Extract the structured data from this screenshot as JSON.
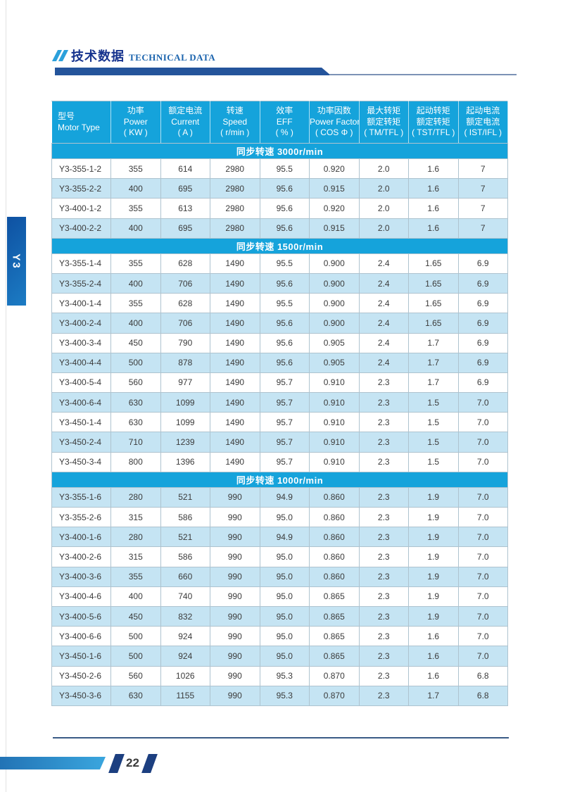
{
  "header": {
    "title_zh": "技术数据",
    "title_en": "TECHNICAL DATA"
  },
  "side_tab": {
    "label": "Y3"
  },
  "footer": {
    "page_number": "22"
  },
  "colors": {
    "table_blue": "#15a3db",
    "stripe_blue": "#c5e4f3",
    "title_navy": "#16338e",
    "bar_navy": "#24549b",
    "tab_blue": "#1464b0",
    "footer_slash_navy": "#1c3f80"
  },
  "table": {
    "columns": [
      {
        "lines": [
          "型号",
          "Motor Type"
        ]
      },
      {
        "lines": [
          "功率",
          "Power",
          "( KW )"
        ]
      },
      {
        "lines": [
          "额定电流",
          "Current",
          "( A )"
        ]
      },
      {
        "lines": [
          "转速",
          "Speed",
          "( r/min )"
        ]
      },
      {
        "lines": [
          "效率",
          "EFF",
          "( % )"
        ]
      },
      {
        "lines": [
          "功率因数",
          "Power Factor",
          "( COS Φ )"
        ]
      },
      {
        "lines": [
          "最大转矩",
          "额定转矩",
          "( TM/TFL )"
        ]
      },
      {
        "lines": [
          "起动转矩",
          "额定转矩",
          "( TST/TFL )"
        ]
      },
      {
        "lines": [
          "起动电流",
          "额定电流",
          "( IST/IFL )"
        ]
      }
    ],
    "sections": [
      {
        "title": "同步转速 3000r/min",
        "first_row_shaded": false,
        "rows": [
          [
            "Y3-355-1-2",
            "355",
            "614",
            "2980",
            "95.5",
            "0.920",
            "2.0",
            "1.6",
            "7"
          ],
          [
            "Y3-355-2-2",
            "400",
            "695",
            "2980",
            "95.6",
            "0.915",
            "2.0",
            "1.6",
            "7"
          ],
          [
            "Y3-400-1-2",
            "355",
            "613",
            "2980",
            "95.6",
            "0.920",
            "2.0",
            "1.6",
            "7"
          ],
          [
            "Y3-400-2-2",
            "400",
            "695",
            "2980",
            "95.6",
            "0.915",
            "2.0",
            "1.6",
            "7"
          ]
        ]
      },
      {
        "title": "同步转速 1500r/min",
        "first_row_shaded": false,
        "rows": [
          [
            "Y3-355-1-4",
            "355",
            "628",
            "1490",
            "95.5",
            "0.900",
            "2.4",
            "1.65",
            "6.9"
          ],
          [
            "Y3-355-2-4",
            "400",
            "706",
            "1490",
            "95.6",
            "0.900",
            "2.4",
            "1.65",
            "6.9"
          ],
          [
            "Y3-400-1-4",
            "355",
            "628",
            "1490",
            "95.5",
            "0.900",
            "2.4",
            "1.65",
            "6.9"
          ],
          [
            "Y3-400-2-4",
            "400",
            "706",
            "1490",
            "95.6",
            "0.900",
            "2.4",
            "1.65",
            "6.9"
          ],
          [
            "Y3-400-3-4",
            "450",
            "790",
            "1490",
            "95.6",
            "0.905",
            "2.4",
            "1.7",
            "6.9"
          ],
          [
            "Y3-400-4-4",
            "500",
            "878",
            "1490",
            "95.6",
            "0.905",
            "2.4",
            "1.7",
            "6.9"
          ],
          [
            "Y3-400-5-4",
            "560",
            "977",
            "1490",
            "95.7",
            "0.910",
            "2.3",
            "1.7",
            "6.9"
          ],
          [
            "Y3-400-6-4",
            "630",
            "1099",
            "1490",
            "95.7",
            "0.910",
            "2.3",
            "1.5",
            "7.0"
          ],
          [
            "Y3-450-1-4",
            "630",
            "1099",
            "1490",
            "95.7",
            "0.910",
            "2.3",
            "1.5",
            "7.0"
          ],
          [
            "Y3-450-2-4",
            "710",
            "1239",
            "1490",
            "95.7",
            "0.910",
            "2.3",
            "1.5",
            "7.0"
          ],
          [
            "Y3-450-3-4",
            "800",
            "1396",
            "1490",
            "95.7",
            "0.910",
            "2.3",
            "1.5",
            "7.0"
          ]
        ]
      },
      {
        "title": "同步转速 1000r/min",
        "first_row_shaded": true,
        "rows": [
          [
            "Y3-355-1-6",
            "280",
            "521",
            "990",
            "94.9",
            "0.860",
            "2.3",
            "1.9",
            "7.0"
          ],
          [
            "Y3-355-2-6",
            "315",
            "586",
            "990",
            "95.0",
            "0.860",
            "2.3",
            "1.9",
            "7.0"
          ],
          [
            "Y3-400-1-6",
            "280",
            "521",
            "990",
            "94.9",
            "0.860",
            "2.3",
            "1.9",
            "7.0"
          ],
          [
            "Y3-400-2-6",
            "315",
            "586",
            "990",
            "95.0",
            "0.860",
            "2.3",
            "1.9",
            "7.0"
          ],
          [
            "Y3-400-3-6",
            "355",
            "660",
            "990",
            "95.0",
            "0.860",
            "2.3",
            "1.9",
            "7.0"
          ],
          [
            "Y3-400-4-6",
            "400",
            "740",
            "990",
            "95.0",
            "0.865",
            "2.3",
            "1.9",
            "7.0"
          ],
          [
            "Y3-400-5-6",
            "450",
            "832",
            "990",
            "95.0",
            "0.865",
            "2.3",
            "1.9",
            "7.0"
          ],
          [
            "Y3-400-6-6",
            "500",
            "924",
            "990",
            "95.0",
            "0.865",
            "2.3",
            "1.6",
            "7.0"
          ],
          [
            "Y3-450-1-6",
            "500",
            "924",
            "990",
            "95.0",
            "0.865",
            "2.3",
            "1.6",
            "7.0"
          ],
          [
            "Y3-450-2-6",
            "560",
            "1026",
            "990",
            "95.3",
            "0.870",
            "2.3",
            "1.6",
            "6.8"
          ],
          [
            "Y3-450-3-6",
            "630",
            "1155",
            "990",
            "95.3",
            "0.870",
            "2.3",
            "1.7",
            "6.8"
          ]
        ]
      }
    ]
  }
}
